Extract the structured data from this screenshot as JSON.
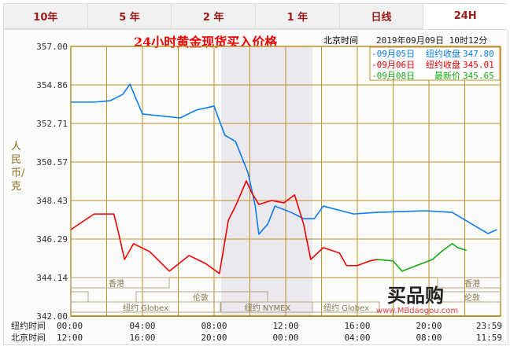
{
  "tabs": [
    {
      "label": "10年"
    },
    {
      "label": "5 年"
    },
    {
      "label": "2 年"
    },
    {
      "label": "1 年"
    },
    {
      "label": "日线"
    },
    {
      "label": "24H",
      "active": true
    }
  ],
  "header": {
    "title": "24小时黄金现货买入价格",
    "tz_label": "北京时间",
    "datetime": "2019年09月09日 10时12分"
  },
  "legend": [
    {
      "date": "-09月05日",
      "label": "纽约收盘",
      "value": "347.80",
      "color": "#0a7cf0"
    },
    {
      "date": "-09月06日",
      "label": "纽约收盘",
      "value": "345.01",
      "color": "#ee0000"
    },
    {
      "date": "-09月08日",
      "label": "最新价",
      "value": "345.65",
      "color": "#11aa11"
    }
  ],
  "sessions": [
    "香港",
    "伦敦",
    "纽约 Globex",
    "纽约 NYMEX",
    "纽约 Globex",
    "香港",
    "伦敦"
  ],
  "axis_rows": [
    {
      "label": "纽约时间",
      "ticks": [
        "00:00",
        "04:00",
        "08:00",
        "12:00",
        "16:00",
        "20:00",
        "23:59"
      ]
    },
    {
      "label": "北京时间",
      "ticks": [
        "12:00",
        "16:00",
        "20:00",
        "00:00",
        "04:00",
        "08:00",
        "11:59"
      ]
    }
  ],
  "watermark": {
    "logo": "买品购",
    "url": "www.MBdaogou.com"
  },
  "chart_data": {
    "type": "line",
    "title": "24小时黄金现货买入价格",
    "ylabel": "人民币/克",
    "ylim": [
      342.0,
      357.0
    ],
    "yticks": [
      "357.00",
      "354.86",
      "352.71",
      "350.57",
      "348.43",
      "346.29",
      "344.14",
      "342.00"
    ],
    "xlim_hours": [
      0,
      24
    ],
    "x_unit": "纽约时间 hours",
    "shaded_hours": [
      8.4,
      13.5
    ],
    "grid": true,
    "series": [
      {
        "name": "09月05日",
        "color": "#0a7cf0",
        "x": [
          0,
          1.3,
          2.2,
          2.9,
          3.3,
          4.0,
          6.1,
          7.0,
          8.0,
          8.6,
          9.2,
          9.9,
          10.3,
          10.5,
          11.0,
          11.4,
          12.3,
          13.0,
          13.6,
          14.1,
          15.8,
          17.1,
          19.8,
          21.3,
          22.4,
          23.3,
          23.8
        ],
        "y": [
          353.9,
          353.9,
          353.98,
          354.33,
          354.9,
          353.24,
          353.02,
          353.46,
          353.68,
          352.06,
          351.71,
          349.96,
          348.12,
          346.55,
          347.12,
          348.12,
          347.77,
          347.42,
          347.42,
          348.12,
          347.68,
          347.77,
          347.86,
          347.77,
          347.12,
          346.59,
          346.81
        ]
      },
      {
        "name": "09月06日",
        "color": "#ee0000",
        "x": [
          0,
          1.3,
          2.4,
          2.6,
          3.0,
          3.5,
          4.4,
          5.5,
          6.6,
          7.5,
          8.3,
          8.8,
          9.2,
          9.8,
          10.1,
          10.5,
          11.2,
          11.9,
          12.5,
          13.0,
          13.4,
          14.1,
          15.0,
          15.4,
          16.0,
          16.7,
          17.1
        ],
        "y": [
          346.81,
          347.68,
          347.68,
          346.9,
          345.15,
          346.03,
          345.59,
          344.5,
          345.37,
          344.94,
          344.37,
          347.34,
          348.12,
          349.52,
          348.87,
          348.21,
          348.43,
          348.3,
          348.74,
          347.12,
          345.15,
          345.81,
          345.51,
          344.81,
          344.81,
          345.07,
          345.15
        ]
      },
      {
        "name": "09月08日",
        "color": "#11aa11",
        "x": [
          17.1,
          18.0,
          18.5,
          19.3,
          20.2,
          20.7,
          21.3,
          21.6,
          22.1
        ],
        "y": [
          345.15,
          345.07,
          344.5,
          344.81,
          345.15,
          345.59,
          346.03,
          345.81,
          345.65
        ]
      }
    ]
  }
}
